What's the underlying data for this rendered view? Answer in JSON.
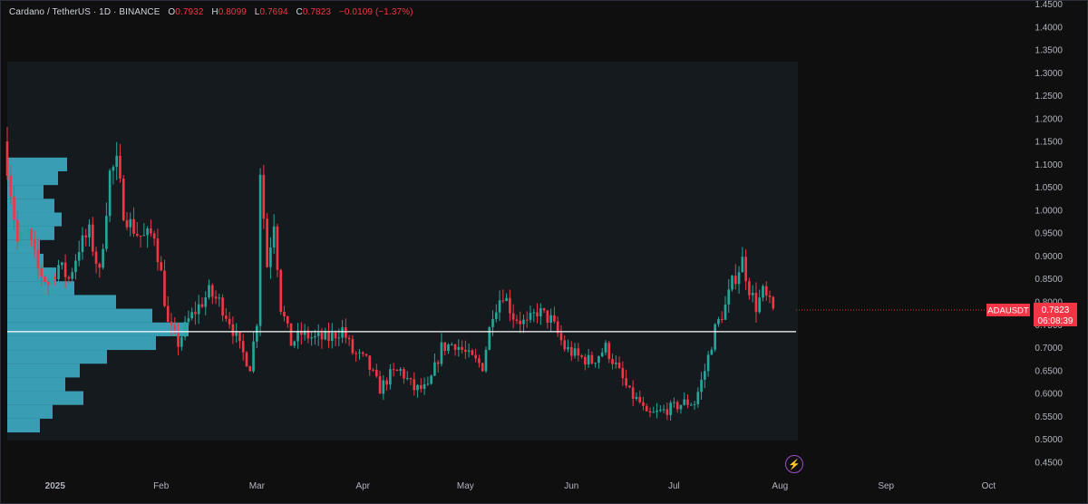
{
  "header": {
    "symbol": "Cardano / TetherUS · 1D · BINANCE",
    "open_label": "O",
    "open": "0.7932",
    "high_label": "H",
    "high": "0.8099",
    "low_label": "L",
    "low": "0.7694",
    "close_label": "C",
    "close": "0.7823",
    "change": "−0.0109 (−1.37%)"
  },
  "price_badge": {
    "ticker": "ADAUSDT",
    "price": "0.7823",
    "countdown": "06:08:39"
  },
  "colors": {
    "up": "#26a69a",
    "down": "#f23645",
    "profile": "#3fb6cf",
    "background": "#0f0f0f"
  },
  "icons": {
    "flash": "lightning-icon"
  },
  "chart_data": {
    "type": "candlestick",
    "y_axis": {
      "range": [
        0.43,
        1.455
      ],
      "ticks": [
        "1.4500",
        "1.4000",
        "1.3500",
        "1.3000",
        "1.2500",
        "1.2000",
        "1.1500",
        "1.1000",
        "1.0500",
        "1.0000",
        "0.9500",
        "0.9000",
        "0.8500",
        "0.8000",
        "0.7500",
        "0.7000",
        "0.6500",
        "0.6000",
        "0.5500",
        "0.5000",
        "0.4500"
      ]
    },
    "x_axis": {
      "labels": [
        "2025",
        "Feb",
        "Mar",
        "Apr",
        "May",
        "Jun",
        "Jul",
        "Aug",
        "Sep",
        "Oct"
      ]
    },
    "horizontal_line": 0.735,
    "last_price": 0.7823,
    "series_close": [
      [
        "2024-12-18",
        1.1
      ],
      [
        "2024-12-21",
        0.93
      ],
      [
        "2024-12-24",
        0.95
      ],
      [
        "2024-12-27",
        0.87
      ],
      [
        "2024-12-30",
        0.84
      ],
      [
        "2025-01-02",
        0.88
      ],
      [
        "2025-01-05",
        0.85
      ],
      [
        "2025-01-08",
        0.92
      ],
      [
        "2025-01-11",
        0.95
      ],
      [
        "2025-01-14",
        0.86
      ],
      [
        "2025-01-17",
        1.08
      ],
      [
        "2025-01-19",
        1.1
      ],
      [
        "2025-01-21",
        1.0
      ],
      [
        "2025-01-23",
        0.97
      ],
      [
        "2025-01-25",
        0.95
      ],
      [
        "2025-01-27",
        0.94
      ],
      [
        "2025-01-30",
        0.95
      ],
      [
        "2025-02-01",
        0.86
      ],
      [
        "2025-02-03",
        0.75
      ],
      [
        "2025-02-06",
        0.71
      ],
      [
        "2025-02-09",
        0.76
      ],
      [
        "2025-02-12",
        0.79
      ],
      [
        "2025-02-15",
        0.82
      ],
      [
        "2025-02-18",
        0.8
      ],
      [
        "2025-02-21",
        0.76
      ],
      [
        "2025-02-24",
        0.7
      ],
      [
        "2025-02-27",
        0.66
      ],
      [
        "2025-03-01",
        0.76
      ],
      [
        "2025-03-02",
        1.09
      ],
      [
        "2025-03-04",
        0.88
      ],
      [
        "2025-03-06",
        0.98
      ],
      [
        "2025-03-08",
        0.79
      ],
      [
        "2025-03-11",
        0.71
      ],
      [
        "2025-03-14",
        0.73
      ],
      [
        "2025-03-18",
        0.72
      ],
      [
        "2025-03-22",
        0.72
      ],
      [
        "2025-03-26",
        0.74
      ],
      [
        "2025-03-29",
        0.69
      ],
      [
        "2025-04-02",
        0.67
      ],
      [
        "2025-04-06",
        0.61
      ],
      [
        "2025-04-09",
        0.64
      ],
      [
        "2025-04-12",
        0.65
      ],
      [
        "2025-04-16",
        0.61
      ],
      [
        "2025-04-20",
        0.61
      ],
      [
        "2025-04-24",
        0.7
      ],
      [
        "2025-04-28",
        0.71
      ],
      [
        "2025-05-02",
        0.68
      ],
      [
        "2025-05-06",
        0.66
      ],
      [
        "2025-05-09",
        0.78
      ],
      [
        "2025-05-12",
        0.82
      ],
      [
        "2025-05-15",
        0.77
      ],
      [
        "2025-05-19",
        0.75
      ],
      [
        "2025-05-22",
        0.78
      ],
      [
        "2025-05-26",
        0.76
      ],
      [
        "2025-05-30",
        0.7
      ],
      [
        "2025-06-03",
        0.68
      ],
      [
        "2025-06-07",
        0.67
      ],
      [
        "2025-06-11",
        0.7
      ],
      [
        "2025-06-14",
        0.66
      ],
      [
        "2025-06-18",
        0.6
      ],
      [
        "2025-06-21",
        0.58
      ],
      [
        "2025-06-23",
        0.55
      ],
      [
        "2025-06-27",
        0.56
      ],
      [
        "2025-07-01",
        0.57
      ],
      [
        "2025-07-04",
        0.58
      ],
      [
        "2025-07-07",
        0.58
      ],
      [
        "2025-07-10",
        0.65
      ],
      [
        "2025-07-13",
        0.74
      ],
      [
        "2025-07-16",
        0.79
      ],
      [
        "2025-07-18",
        0.84
      ],
      [
        "2025-07-21",
        0.89
      ],
      [
        "2025-07-23",
        0.83
      ],
      [
        "2025-07-25",
        0.79
      ],
      [
        "2025-07-27",
        0.82
      ],
      [
        "2025-07-30",
        0.78
      ]
    ],
    "volume_profile": [
      [
        1.1,
        0.33
      ],
      [
        1.07,
        0.28
      ],
      [
        1.04,
        0.2
      ],
      [
        1.01,
        0.26
      ],
      [
        0.98,
        0.3
      ],
      [
        0.95,
        0.26
      ],
      [
        0.92,
        0.18
      ],
      [
        0.89,
        0.2
      ],
      [
        0.86,
        0.27
      ],
      [
        0.83,
        0.37
      ],
      [
        0.8,
        0.6
      ],
      [
        0.77,
        0.8
      ],
      [
        0.74,
        1.0
      ],
      [
        0.71,
        0.82
      ],
      [
        0.68,
        0.55
      ],
      [
        0.65,
        0.4
      ],
      [
        0.62,
        0.32
      ],
      [
        0.59,
        0.42
      ],
      [
        0.56,
        0.25
      ],
      [
        0.53,
        0.18
      ]
    ]
  }
}
